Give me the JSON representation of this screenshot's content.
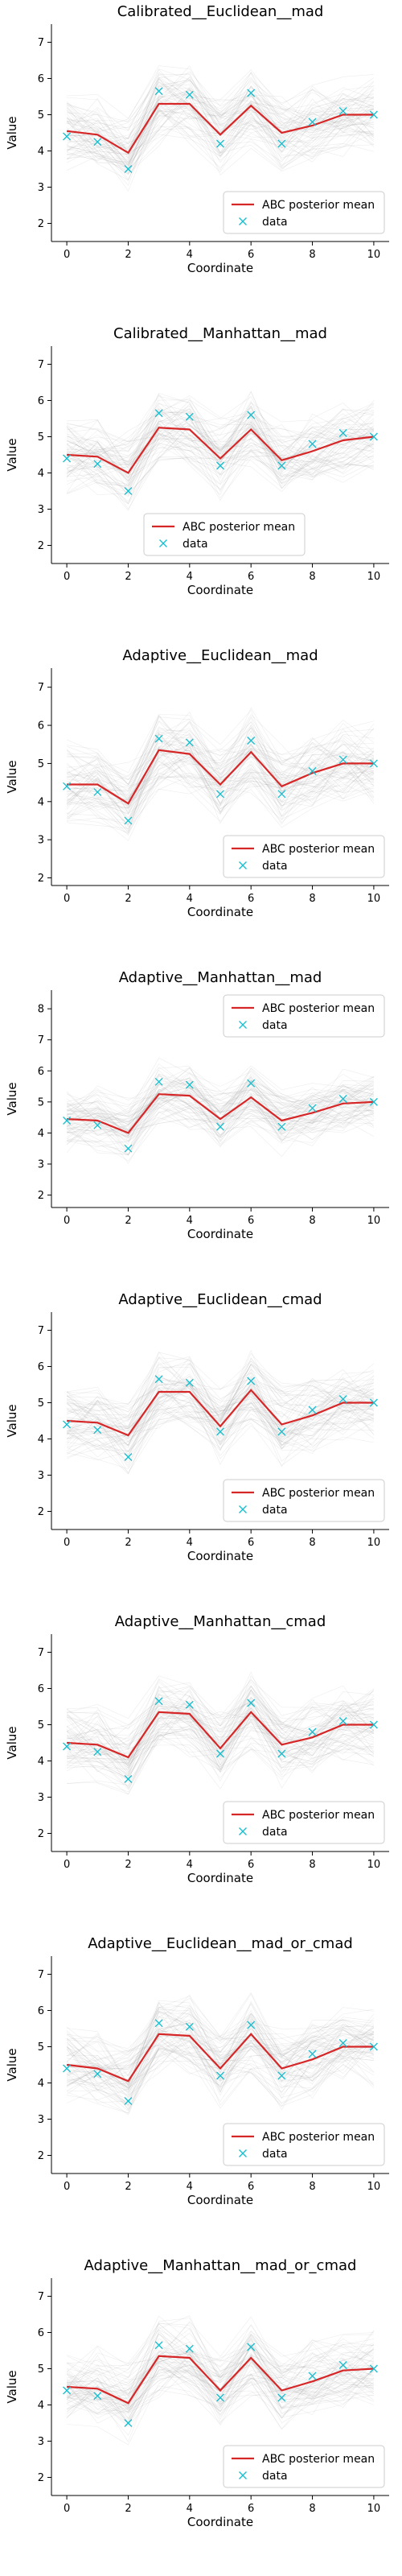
{
  "chart_data": [
    {
      "type": "line",
      "title": "Calibrated__Euclidean__mad",
      "xlabel": "Coordinate",
      "ylabel": "Value",
      "xlim": [
        -0.5,
        10.5
      ],
      "ylim": [
        1.5,
        7.5
      ],
      "xticks": [
        "0",
        "2",
        "4",
        "6",
        "8",
        "10"
      ],
      "yticks": [
        "2",
        "3",
        "4",
        "5",
        "6",
        "7"
      ],
      "legend_position": "lower-right",
      "x": [
        0,
        1,
        2,
        3,
        4,
        5,
        6,
        7,
        8,
        9,
        10
      ],
      "series": [
        {
          "name": "ABC posterior mean",
          "color": "#d62728",
          "values": [
            4.55,
            4.45,
            3.95,
            5.3,
            5.3,
            4.45,
            5.25,
            4.5,
            4.7,
            5.0,
            5.0
          ]
        },
        {
          "name": "data",
          "color": "#17becf",
          "values": [
            4.4,
            4.25,
            3.5,
            5.65,
            5.55,
            4.2,
            5.6,
            4.2,
            4.8,
            5.1,
            5.0
          ]
        }
      ]
    },
    {
      "type": "line",
      "title": "Calibrated__Manhattan__mad",
      "xlabel": "Coordinate",
      "ylabel": "Value",
      "xlim": [
        -0.5,
        10.5
      ],
      "ylim": [
        1.5,
        7.5
      ],
      "xticks": [
        "0",
        "2",
        "4",
        "6",
        "8",
        "10"
      ],
      "yticks": [
        "2",
        "3",
        "4",
        "5",
        "6",
        "7"
      ],
      "legend_position": "lower-center",
      "x": [
        0,
        1,
        2,
        3,
        4,
        5,
        6,
        7,
        8,
        9,
        10
      ],
      "series": [
        {
          "name": "ABC posterior mean",
          "color": "#d62728",
          "values": [
            4.5,
            4.45,
            4.0,
            5.25,
            5.2,
            4.4,
            5.2,
            4.35,
            4.6,
            4.9,
            5.0
          ]
        },
        {
          "name": "data",
          "color": "#17becf",
          "values": [
            4.4,
            4.25,
            3.5,
            5.65,
            5.55,
            4.2,
            5.6,
            4.2,
            4.8,
            5.1,
            5.0
          ]
        }
      ]
    },
    {
      "type": "line",
      "title": "Adaptive__Euclidean__mad",
      "xlabel": "Coordinate",
      "ylabel": "Value",
      "xlim": [
        -0.5,
        10.5
      ],
      "ylim": [
        1.8,
        7.5
      ],
      "xticks": [
        "0",
        "2",
        "4",
        "6",
        "8",
        "10"
      ],
      "yticks": [
        "2",
        "3",
        "4",
        "5",
        "6",
        "7"
      ],
      "legend_position": "lower-right",
      "x": [
        0,
        1,
        2,
        3,
        4,
        5,
        6,
        7,
        8,
        9,
        10
      ],
      "series": [
        {
          "name": "ABC posterior mean",
          "color": "#d62728",
          "values": [
            4.45,
            4.45,
            3.95,
            5.35,
            5.25,
            4.45,
            5.3,
            4.4,
            4.75,
            5.0,
            5.0
          ]
        },
        {
          "name": "data",
          "color": "#17becf",
          "values": [
            4.4,
            4.25,
            3.5,
            5.65,
            5.55,
            4.2,
            5.6,
            4.2,
            4.8,
            5.1,
            5.0
          ]
        }
      ]
    },
    {
      "type": "line",
      "title": "Adaptive__Manhattan__mad",
      "xlabel": "Coordinate",
      "ylabel": "Value",
      "xlim": [
        -0.5,
        10.5
      ],
      "ylim": [
        1.6,
        8.6
      ],
      "xticks": [
        "0",
        "2",
        "4",
        "6",
        "8",
        "10"
      ],
      "yticks": [
        "2",
        "3",
        "4",
        "5",
        "6",
        "7",
        "8"
      ],
      "legend_position": "upper-right",
      "x": [
        0,
        1,
        2,
        3,
        4,
        5,
        6,
        7,
        8,
        9,
        10
      ],
      "series": [
        {
          "name": "ABC posterior mean",
          "color": "#d62728",
          "values": [
            4.45,
            4.4,
            4.0,
            5.25,
            5.2,
            4.45,
            5.15,
            4.4,
            4.65,
            4.95,
            5.0
          ]
        },
        {
          "name": "data",
          "color": "#17becf",
          "values": [
            4.4,
            4.25,
            3.5,
            5.65,
            5.55,
            4.2,
            5.6,
            4.2,
            4.8,
            5.1,
            5.0
          ]
        }
      ]
    },
    {
      "type": "line",
      "title": "Adaptive__Euclidean__cmad",
      "xlabel": "Coordinate",
      "ylabel": "Value",
      "xlim": [
        -0.5,
        10.5
      ],
      "ylim": [
        1.5,
        7.5
      ],
      "xticks": [
        "0",
        "2",
        "4",
        "6",
        "8",
        "10"
      ],
      "yticks": [
        "2",
        "3",
        "4",
        "5",
        "6",
        "7"
      ],
      "legend_position": "lower-right",
      "x": [
        0,
        1,
        2,
        3,
        4,
        5,
        6,
        7,
        8,
        9,
        10
      ],
      "series": [
        {
          "name": "ABC posterior mean",
          "color": "#d62728",
          "values": [
            4.5,
            4.45,
            4.1,
            5.3,
            5.3,
            4.35,
            5.35,
            4.4,
            4.65,
            5.0,
            5.0
          ]
        },
        {
          "name": "data",
          "color": "#17becf",
          "values": [
            4.4,
            4.25,
            3.5,
            5.65,
            5.55,
            4.2,
            5.6,
            4.2,
            4.8,
            5.1,
            5.0
          ]
        }
      ]
    },
    {
      "type": "line",
      "title": "Adaptive__Manhattan__cmad",
      "xlabel": "Coordinate",
      "ylabel": "Value",
      "xlim": [
        -0.5,
        10.5
      ],
      "ylim": [
        1.5,
        7.5
      ],
      "xticks": [
        "0",
        "2",
        "4",
        "6",
        "8",
        "10"
      ],
      "yticks": [
        "2",
        "3",
        "4",
        "5",
        "6",
        "7"
      ],
      "legend_position": "lower-right",
      "x": [
        0,
        1,
        2,
        3,
        4,
        5,
        6,
        7,
        8,
        9,
        10
      ],
      "series": [
        {
          "name": "ABC posterior mean",
          "color": "#d62728",
          "values": [
            4.5,
            4.45,
            4.1,
            5.35,
            5.3,
            4.35,
            5.35,
            4.45,
            4.65,
            5.0,
            5.0
          ]
        },
        {
          "name": "data",
          "color": "#17becf",
          "values": [
            4.4,
            4.25,
            3.5,
            5.65,
            5.55,
            4.2,
            5.6,
            4.2,
            4.8,
            5.1,
            5.0
          ]
        }
      ]
    },
    {
      "type": "line",
      "title": "Adaptive__Euclidean__mad_or_cmad",
      "xlabel": "Coordinate",
      "ylabel": "Value",
      "xlim": [
        -0.5,
        10.5
      ],
      "ylim": [
        1.5,
        7.5
      ],
      "xticks": [
        "0",
        "2",
        "4",
        "6",
        "8",
        "10"
      ],
      "yticks": [
        "2",
        "3",
        "4",
        "5",
        "6",
        "7"
      ],
      "legend_position": "lower-right",
      "x": [
        0,
        1,
        2,
        3,
        4,
        5,
        6,
        7,
        8,
        9,
        10
      ],
      "series": [
        {
          "name": "ABC posterior mean",
          "color": "#d62728",
          "values": [
            4.5,
            4.4,
            4.05,
            5.35,
            5.3,
            4.4,
            5.35,
            4.4,
            4.65,
            5.0,
            5.0
          ]
        },
        {
          "name": "data",
          "color": "#17becf",
          "values": [
            4.4,
            4.25,
            3.5,
            5.65,
            5.55,
            4.2,
            5.6,
            4.2,
            4.8,
            5.1,
            5.0
          ]
        }
      ]
    },
    {
      "type": "line",
      "title": "Adaptive__Manhattan__mad_or_cmad",
      "xlabel": "Coordinate",
      "ylabel": "Value",
      "xlim": [
        -0.5,
        10.5
      ],
      "ylim": [
        1.5,
        7.5
      ],
      "xticks": [
        "0",
        "2",
        "4",
        "6",
        "8",
        "10"
      ],
      "yticks": [
        "2",
        "3",
        "4",
        "5",
        "6",
        "7"
      ],
      "legend_position": "lower-right",
      "x": [
        0,
        1,
        2,
        3,
        4,
        5,
        6,
        7,
        8,
        9,
        10
      ],
      "series": [
        {
          "name": "ABC posterior mean",
          "color": "#d62728",
          "values": [
            4.5,
            4.45,
            4.05,
            5.35,
            5.3,
            4.4,
            5.3,
            4.4,
            4.65,
            4.95,
            5.0
          ]
        },
        {
          "name": "data",
          "color": "#17becf",
          "values": [
            4.4,
            4.25,
            3.5,
            5.65,
            5.55,
            4.2,
            5.6,
            4.2,
            4.8,
            5.1,
            5.0
          ]
        }
      ]
    }
  ]
}
